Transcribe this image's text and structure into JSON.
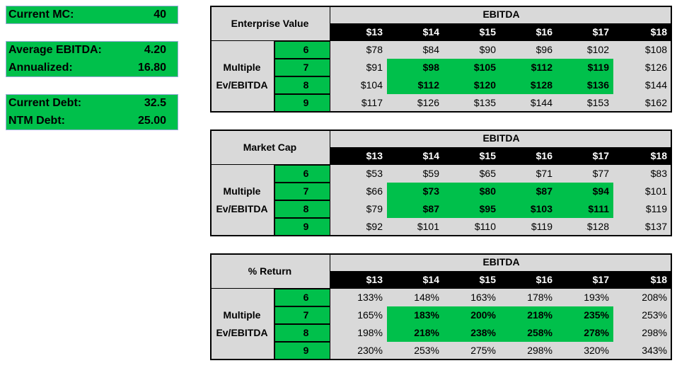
{
  "boxes": [
    {
      "rows": [
        {
          "label": "Current MC:",
          "value": "40"
        }
      ]
    },
    {
      "rows": [
        {
          "label": "Average EBITDA:",
          "value": "4.20"
        },
        {
          "label": "Annualized:",
          "value": "16.80"
        }
      ]
    },
    {
      "rows": [
        {
          "label": "Current Debt:",
          "value": "32.5"
        },
        {
          "label": "NTM Debt:",
          "value": "25.00"
        }
      ]
    }
  ],
  "tables": [
    {
      "title": "Enterprise Value",
      "header": "EBITDA",
      "columns": [
        "$13",
        "$14",
        "$15",
        "$16",
        "$17",
        "$18"
      ],
      "row_label": [
        "Multiple",
        "Ev/EBITDA"
      ],
      "rows": [
        {
          "multiple": "6",
          "values": [
            "$78",
            "$84",
            "$90",
            "$96",
            "$102",
            "$108"
          ]
        },
        {
          "multiple": "7",
          "values": [
            "$91",
            "$98",
            "$105",
            "$112",
            "$119",
            "$126"
          ]
        },
        {
          "multiple": "8",
          "values": [
            "$104",
            "$112",
            "$120",
            "$128",
            "$136",
            "$144"
          ]
        },
        {
          "multiple": "9",
          "values": [
            "$117",
            "$126",
            "$135",
            "$144",
            "$153",
            "$162"
          ]
        }
      ]
    },
    {
      "title": "Market Cap",
      "header": "EBITDA",
      "columns": [
        "$13",
        "$14",
        "$15",
        "$16",
        "$17",
        "$18"
      ],
      "row_label": [
        "Multiple",
        "Ev/EBITDA"
      ],
      "rows": [
        {
          "multiple": "6",
          "values": [
            "$53",
            "$59",
            "$65",
            "$71",
            "$77",
            "$83"
          ]
        },
        {
          "multiple": "7",
          "values": [
            "$66",
            "$73",
            "$80",
            "$87",
            "$94",
            "$101"
          ]
        },
        {
          "multiple": "8",
          "values": [
            "$79",
            "$87",
            "$95",
            "$103",
            "$111",
            "$119"
          ]
        },
        {
          "multiple": "9",
          "values": [
            "$92",
            "$101",
            "$110",
            "$119",
            "$128",
            "$137"
          ]
        }
      ]
    },
    {
      "title": "% Return",
      "header": "EBITDA",
      "columns": [
        "$13",
        "$14",
        "$15",
        "$16",
        "$17",
        "$18"
      ],
      "row_label": [
        "Multiple",
        "Ev/EBITDA"
      ],
      "rows": [
        {
          "multiple": "6",
          "values": [
            "133%",
            "148%",
            "163%",
            "178%",
            "193%",
            "208%"
          ]
        },
        {
          "multiple": "7",
          "values": [
            "165%",
            "183%",
            "200%",
            "218%",
            "235%",
            "253%"
          ]
        },
        {
          "multiple": "8",
          "values": [
            "198%",
            "218%",
            "238%",
            "258%",
            "278%",
            "298%"
          ]
        },
        {
          "multiple": "9",
          "values": [
            "230%",
            "253%",
            "275%",
            "298%",
            "320%",
            "343%"
          ]
        }
      ]
    }
  ]
}
